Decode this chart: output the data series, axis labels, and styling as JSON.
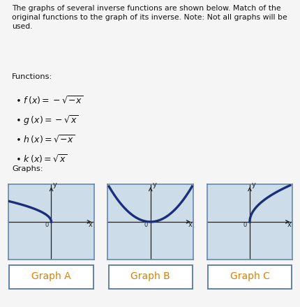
{
  "title_text": "The graphs of several inverse functions are shown below. Match of the\noriginal functions to the graph of its inverse. Note: Not all graphs will be\nused.",
  "functions_label": "Functions:",
  "graphs_label": "Graphs:",
  "graph_labels": [
    "Graph A",
    "Graph B",
    "Graph C"
  ],
  "bg_outer": "#f0f0f0",
  "bg_graphs_area": "#dce8f0",
  "bg_panel": "#ccdce8",
  "curve_color": "#1a2e7a",
  "axis_color": "#222222",
  "text_color": "#111111",
  "label_text_color": "#d4820a",
  "label_box_edge": "#5577aa",
  "label_box_fill": "#ffffff",
  "graphs_box_edge": "#8899bb",
  "panel_edge": "#6688aa",
  "curve_types": [
    "left_parabola",
    "upward_parabola",
    "right_parabola"
  ]
}
